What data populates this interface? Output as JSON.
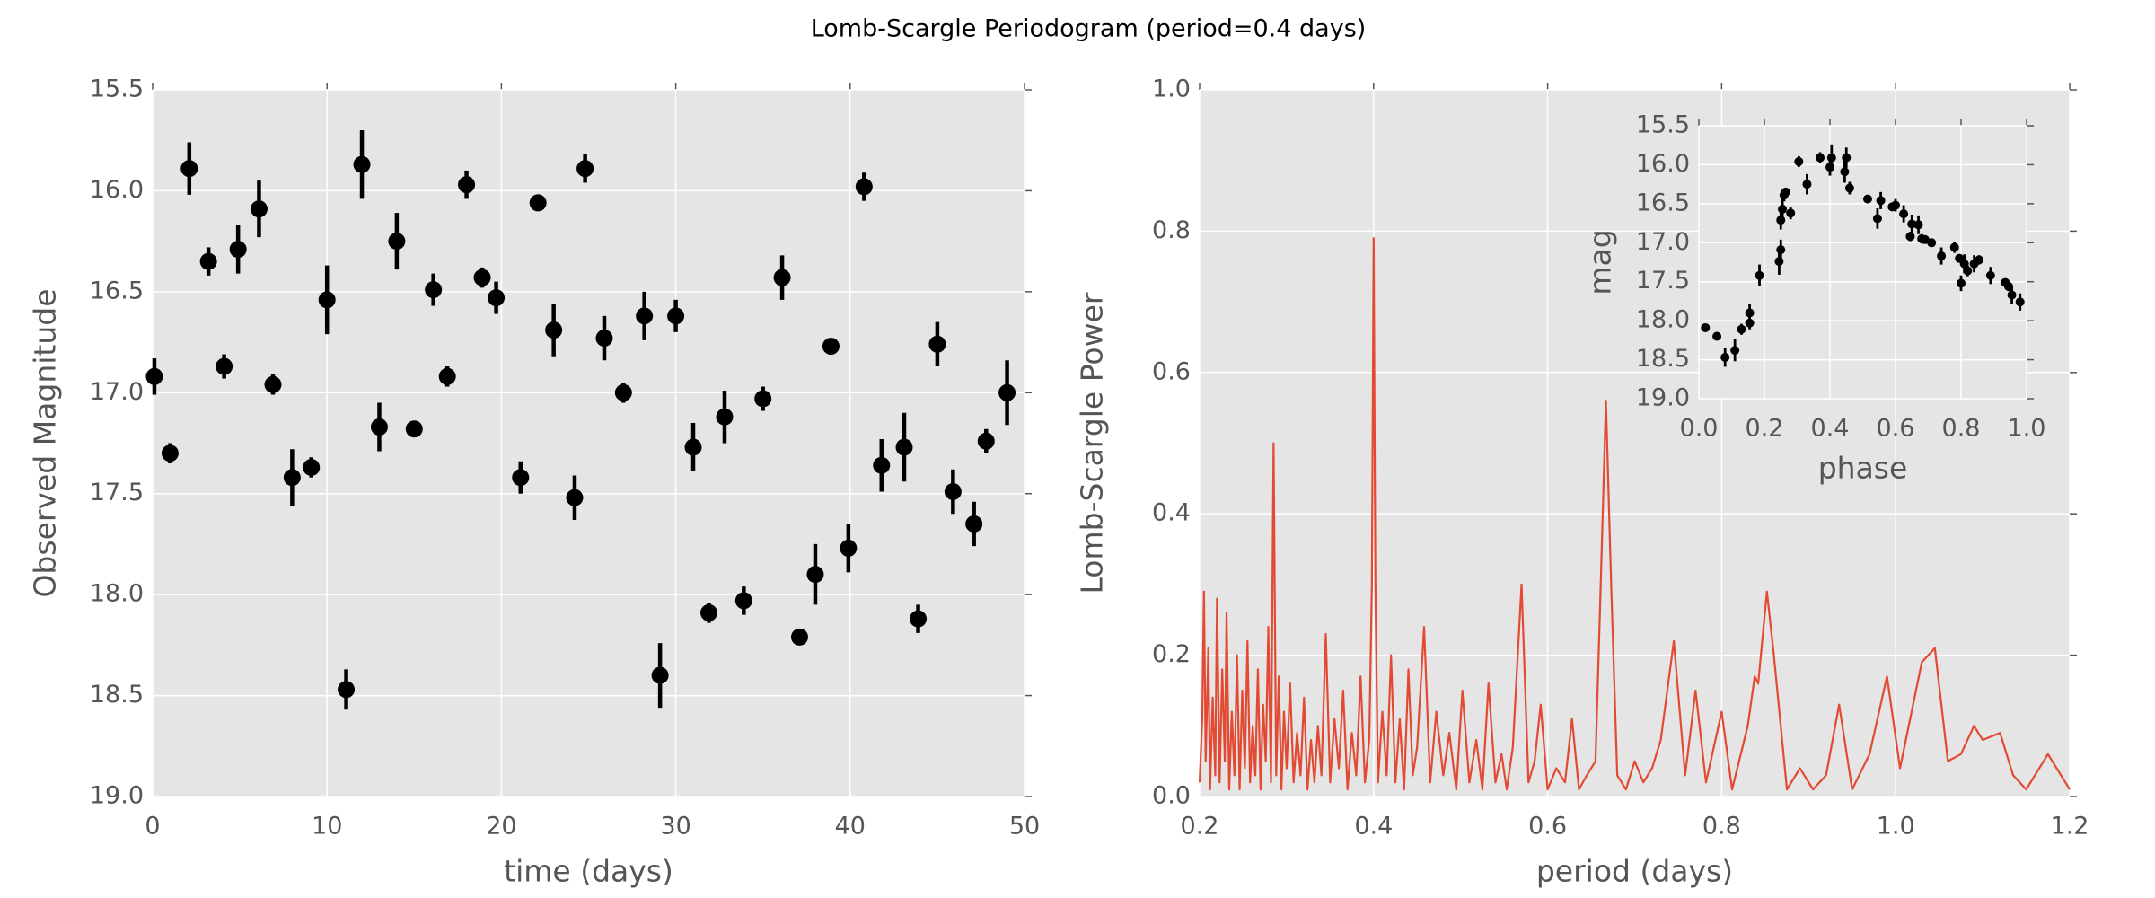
{
  "title": "Lomb-Scargle Periodogram (period=0.4 days)",
  "chart_data": [
    {
      "type": "scatter",
      "xlabel": "time (days)",
      "ylabel": "Observed Magnitude",
      "color": "#000000",
      "grid": true,
      "xlim": [
        0,
        50
      ],
      "ylim": [
        19.0,
        15.5
      ],
      "xticks": [
        0,
        10,
        20,
        30,
        40,
        50
      ],
      "yticks": [
        15.5,
        {
          "value": 16.0,
          "label": "16.0"
        },
        16.5,
        {
          "value": 17.0,
          "label": "17.0"
        },
        17.5,
        {
          "value": 18.0,
          "label": "18.0"
        },
        18.5,
        {
          "value": 19.0,
          "label": "19.0"
        }
      ],
      "x": [
        0.1,
        1.0,
        2.1,
        3.2,
        4.1,
        4.9,
        6.1,
        6.9,
        8.0,
        9.1,
        10.0,
        11.1,
        12.0,
        13.0,
        14.0,
        15.0,
        16.1,
        16.9,
        18.0,
        18.9,
        19.7,
        21.1,
        22.1,
        23.0,
        24.2,
        24.8,
        25.9,
        27.0,
        28.2,
        29.1,
        30.0,
        31.0,
        31.9,
        32.8,
        33.9,
        35.0,
        36.1,
        37.1,
        38.0,
        38.9,
        39.9,
        40.8,
        41.8,
        43.1,
        43.9,
        45.0,
        45.9,
        47.1,
        47.8,
        49.0
      ],
      "values": [
        16.92,
        17.3,
        15.89,
        16.35,
        16.87,
        16.29,
        16.09,
        16.96,
        17.42,
        17.37,
        16.54,
        18.47,
        15.87,
        17.17,
        16.25,
        17.18,
        16.49,
        16.92,
        15.97,
        16.43,
        16.53,
        17.42,
        16.06,
        16.69,
        17.52,
        15.89,
        16.73,
        17.0,
        16.62,
        18.4,
        16.62,
        17.27,
        18.09,
        17.12,
        18.03,
        17.03,
        16.43,
        18.21,
        17.9,
        16.77,
        17.77,
        15.98,
        17.36,
        17.27,
        18.12,
        16.76,
        17.49,
        17.65,
        17.24,
        17.0
      ],
      "errors": [
        0.09,
        0.05,
        0.13,
        0.07,
        0.06,
        0.12,
        0.14,
        0.05,
        0.14,
        0.05,
        0.17,
        0.1,
        0.17,
        0.12,
        0.14,
        0.04,
        0.08,
        0.05,
        0.07,
        0.05,
        0.08,
        0.08,
        0.04,
        0.13,
        0.11,
        0.07,
        0.11,
        0.05,
        0.12,
        0.16,
        0.08,
        0.12,
        0.05,
        0.13,
        0.07,
        0.06,
        0.11,
        0.03,
        0.15,
        0.03,
        0.12,
        0.07,
        0.13,
        0.17,
        0.07,
        0.11,
        0.11,
        0.11,
        0.06,
        0.16
      ]
    },
    {
      "type": "line",
      "xlabel": "period (days)",
      "ylabel": "Lomb-Scargle Power",
      "color": "#e24a33",
      "grid": true,
      "xlim": [
        0.2,
        1.2
      ],
      "ylim": [
        0,
        1.0
      ],
      "xticks": [
        0.2,
        0.4,
        0.6,
        0.8,
        {
          "value": 1.0,
          "label": "1.0"
        },
        1.2
      ],
      "yticks": [
        {
          "value": 0,
          "label": "0.0"
        },
        0.2,
        0.4,
        0.6,
        0.8,
        {
          "value": 1.0,
          "label": "1.0"
        }
      ],
      "x": [
        0.2,
        0.203,
        0.205,
        0.207,
        0.21,
        0.212,
        0.215,
        0.218,
        0.22,
        0.223,
        0.226,
        0.229,
        0.231,
        0.234,
        0.237,
        0.24,
        0.243,
        0.246,
        0.249,
        0.252,
        0.255,
        0.258,
        0.261,
        0.264,
        0.267,
        0.27,
        0.273,
        0.276,
        0.279,
        0.282,
        0.285,
        0.288,
        0.291,
        0.294,
        0.297,
        0.3,
        0.304,
        0.308,
        0.312,
        0.316,
        0.32,
        0.324,
        0.328,
        0.332,
        0.336,
        0.34,
        0.345,
        0.35,
        0.355,
        0.36,
        0.365,
        0.37,
        0.375,
        0.38,
        0.385,
        0.39,
        0.395,
        0.398,
        0.4,
        0.402,
        0.405,
        0.41,
        0.415,
        0.42,
        0.425,
        0.43,
        0.435,
        0.44,
        0.445,
        0.45,
        0.458,
        0.465,
        0.472,
        0.48,
        0.487,
        0.495,
        0.502,
        0.51,
        0.518,
        0.525,
        0.532,
        0.54,
        0.547,
        0.553,
        0.56,
        0.57,
        0.578,
        0.585,
        0.592,
        0.6,
        0.61,
        0.62,
        0.628,
        0.636,
        0.645,
        0.655,
        0.661,
        0.667,
        0.673,
        0.68,
        0.69,
        0.7,
        0.71,
        0.72,
        0.73,
        0.745,
        0.758,
        0.77,
        0.782,
        0.8,
        0.812,
        0.83,
        0.838,
        0.842,
        0.852,
        0.86,
        0.875,
        0.89,
        0.905,
        0.92,
        0.935,
        0.95,
        0.97,
        0.99,
        1.005,
        1.03,
        1.045,
        1.06,
        1.075,
        1.09,
        1.1,
        1.12,
        1.135,
        1.15,
        1.175,
        1.2
      ],
      "values": [
        0.02,
        0.11,
        0.29,
        0.05,
        0.21,
        0.01,
        0.14,
        0.03,
        0.28,
        0.02,
        0.18,
        0.05,
        0.26,
        0.01,
        0.12,
        0.03,
        0.2,
        0.01,
        0.15,
        0.04,
        0.22,
        0.02,
        0.1,
        0.03,
        0.18,
        0.01,
        0.13,
        0.05,
        0.24,
        0.02,
        0.5,
        0.03,
        0.17,
        0.01,
        0.12,
        0.04,
        0.16,
        0.02,
        0.09,
        0.03,
        0.14,
        0.01,
        0.08,
        0.02,
        0.1,
        0.03,
        0.23,
        0.02,
        0.11,
        0.04,
        0.15,
        0.01,
        0.09,
        0.03,
        0.17,
        0.02,
        0.08,
        0.3,
        0.79,
        0.3,
        0.02,
        0.12,
        0.03,
        0.2,
        0.02,
        0.11,
        0.01,
        0.18,
        0.03,
        0.07,
        0.24,
        0.02,
        0.12,
        0.03,
        0.09,
        0.01,
        0.15,
        0.02,
        0.08,
        0.01,
        0.16,
        0.02,
        0.06,
        0.01,
        0.07,
        0.3,
        0.02,
        0.05,
        0.13,
        0.01,
        0.04,
        0.02,
        0.11,
        0.01,
        0.03,
        0.05,
        0.3,
        0.56,
        0.3,
        0.03,
        0.01,
        0.05,
        0.02,
        0.04,
        0.08,
        0.22,
        0.03,
        0.15,
        0.02,
        0.12,
        0.01,
        0.1,
        0.17,
        0.16,
        0.29,
        0.2,
        0.01,
        0.04,
        0.01,
        0.03,
        0.13,
        0.01,
        0.06,
        0.17,
        0.04,
        0.19,
        0.21,
        0.05,
        0.06,
        0.1,
        0.08,
        0.09,
        0.03,
        0.01,
        0.06,
        0.01
      ]
    },
    {
      "type": "scatter",
      "xlabel": "phase",
      "ylabel": "mag",
      "color": "#000000",
      "grid": true,
      "xlim": [
        0,
        1.0
      ],
      "ylim": [
        19.0,
        15.5
      ],
      "xticks": [
        {
          "value": 0,
          "label": "0.0"
        },
        0.2,
        0.4,
        0.6,
        0.8,
        {
          "value": 1.0,
          "label": "1.0"
        }
      ],
      "yticks": [
        15.5,
        {
          "value": 16.0,
          "label": "16.0"
        },
        16.5,
        {
          "value": 17.0,
          "label": "17.0"
        },
        17.5,
        {
          "value": 18.0,
          "label": "18.0"
        },
        18.5,
        {
          "value": 19.0,
          "label": "19.0"
        }
      ],
      "x": [
        0.02,
        0.055,
        0.08,
        0.11,
        0.13,
        0.155,
        0.155,
        0.185,
        0.245,
        0.25,
        0.25,
        0.255,
        0.26,
        0.265,
        0.28,
        0.305,
        0.33,
        0.37,
        0.4,
        0.405,
        0.445,
        0.45,
        0.46,
        0.515,
        0.545,
        0.555,
        0.59,
        0.6,
        0.625,
        0.65,
        0.645,
        0.67,
        0.68,
        0.69,
        0.71,
        0.74,
        0.78,
        0.795,
        0.8,
        0.81,
        0.82,
        0.84,
        0.855,
        0.89,
        0.935,
        0.945,
        0.955,
        0.98
      ],
      "values": [
        18.09,
        18.2,
        18.47,
        18.38,
        18.11,
        18.03,
        17.9,
        17.42,
        17.24,
        17.09,
        16.71,
        16.57,
        16.39,
        16.35,
        16.62,
        15.96,
        16.25,
        15.91,
        16.03,
        15.91,
        16.09,
        15.91,
        16.3,
        16.44,
        16.69,
        16.46,
        16.54,
        16.52,
        16.63,
        16.76,
        16.92,
        16.77,
        16.95,
        16.96,
        17.0,
        17.17,
        17.06,
        17.2,
        17.52,
        17.27,
        17.36,
        17.27,
        17.22,
        17.42,
        17.51,
        17.56,
        17.67,
        17.76
      ],
      "errors": [
        0.05,
        0.05,
        0.12,
        0.14,
        0.07,
        0.08,
        0.12,
        0.14,
        0.17,
        0.13,
        0.12,
        0.14,
        0.08,
        0.05,
        0.08,
        0.07,
        0.13,
        0.07,
        0.11,
        0.17,
        0.14,
        0.13,
        0.08,
        0.05,
        0.13,
        0.11,
        0.05,
        0.08,
        0.11,
        0.12,
        0.06,
        0.12,
        0.06,
        0.05,
        0.05,
        0.11,
        0.07,
        0.04,
        0.1,
        0.12,
        0.07,
        0.11,
        0.06,
        0.11,
        0.04,
        0.06,
        0.12,
        0.11
      ]
    }
  ]
}
